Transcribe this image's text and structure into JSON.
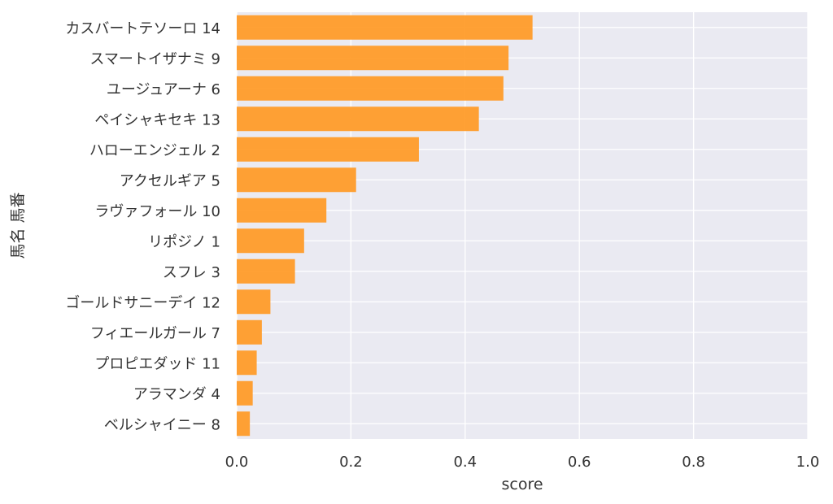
{
  "chart_data": {
    "type": "bar",
    "orientation": "horizontal",
    "xlabel": "score",
    "ylabel": "馬名 馬番",
    "xlim": [
      0,
      1
    ],
    "xticks": [
      "0.0",
      "0.2",
      "0.4",
      "0.6",
      "0.8",
      "1.0"
    ],
    "xtick_values": [
      0,
      0.2,
      0.4,
      0.6,
      0.8,
      1.0
    ],
    "grid": true,
    "bar_color": "#ff9924",
    "plot_background": "#eaeaf2",
    "categories": [
      "カスバートテソーロ 14",
      "スマートイザナミ 9",
      "ユージュアーナ 6",
      "ペイシャキセキ 13",
      "ハローエンジェル 2",
      "アクセルギア 5",
      "ラヴァフォール 10",
      "リポジノ 1",
      "スフレ 3",
      "ゴールドサニーデイ 12",
      "フィエールガール 7",
      "プロピエダッド 11",
      "アラマンダ 4",
      "ベルシャイニー 8"
    ],
    "values": [
      0.518,
      0.476,
      0.467,
      0.424,
      0.319,
      0.209,
      0.157,
      0.118,
      0.102,
      0.059,
      0.044,
      0.035,
      0.028,
      0.023
    ]
  }
}
